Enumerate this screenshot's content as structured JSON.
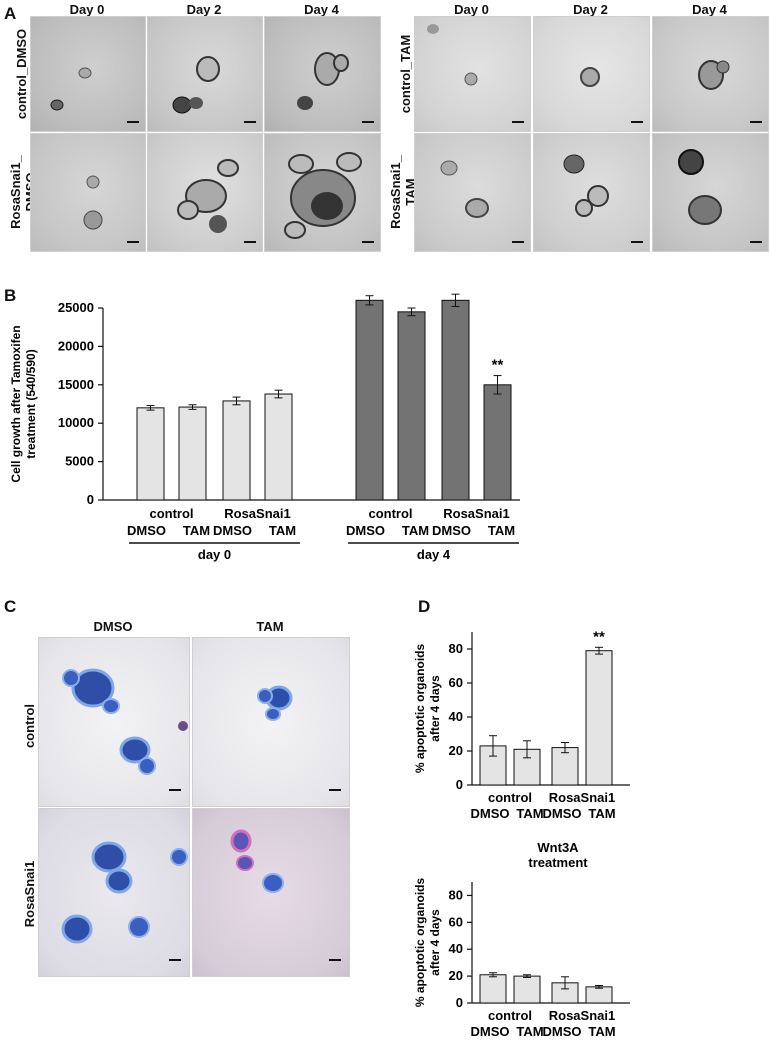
{
  "panels": {
    "A": {
      "label": "A",
      "left_columns": [
        "Day 0",
        "Day 2",
        "Day 4"
      ],
      "right_columns": [
        "Day 0",
        "Day 2",
        "Day 4"
      ],
      "left_rows": [
        "control_DMSO",
        "RosaSnai1_\nDMSO"
      ],
      "right_rows": [
        "control_TAM",
        "RosaSnai1_\nTAM"
      ]
    },
    "B": {
      "label": "B"
    },
    "C": {
      "label": "C",
      "columns": [
        "DMSO",
        "TAM"
      ],
      "rows": [
        "control",
        "RosaSnai1"
      ]
    },
    "D": {
      "label": "D"
    }
  },
  "chart_data": [
    {
      "type": "bar",
      "id": "B",
      "ylabel": "Cell growth after Tamoxifen\ntreatment (540/590)",
      "ylim": [
        0,
        25000
      ],
      "yticks": [
        0,
        5000,
        10000,
        15000,
        20000,
        25000
      ],
      "groups": [
        {
          "name": "day 0",
          "color": "#e4e4e4",
          "subgroups": [
            {
              "name": "control",
              "categories": [
                "DMSO",
                "TAM"
              ]
            },
            {
              "name": "RosaSnai1",
              "categories": [
                "DMSO",
                "TAM"
              ]
            }
          ],
          "values": [
            12000,
            12100,
            12900,
            13800
          ],
          "errors": [
            300,
            300,
            500,
            500
          ]
        },
        {
          "name": "day 4",
          "color": "#737373",
          "subgroups": [
            {
              "name": "control",
              "categories": [
                "DMSO",
                "TAM"
              ]
            },
            {
              "name": "RosaSnai1",
              "categories": [
                "DMSO",
                "TAM"
              ]
            }
          ],
          "values": [
            26000,
            24500,
            26000,
            15000
          ],
          "errors": [
            600,
            500,
            800,
            1200
          ]
        }
      ],
      "annotations": [
        {
          "bar": 7,
          "text": "**"
        }
      ]
    },
    {
      "type": "bar",
      "id": "D-top",
      "title": "",
      "ylabel": "% apoptotic organoids\nafter 4 days",
      "ylim": [
        0,
        90
      ],
      "yticks": [
        0,
        20,
        40,
        60,
        80
      ],
      "color": "#e4e4e4",
      "subgroups": [
        {
          "name": "control",
          "categories": [
            "DMSO",
            "TAM"
          ]
        },
        {
          "name": "RosaSnai1",
          "categories": [
            "DMSO",
            "TAM"
          ]
        }
      ],
      "values": [
        23,
        21,
        22,
        79
      ],
      "errors": [
        6,
        5,
        3,
        2
      ],
      "annotations": [
        {
          "bar": 3,
          "text": "**"
        }
      ]
    },
    {
      "type": "bar",
      "id": "D-bottom",
      "title": "Wnt3A\ntreatment",
      "ylabel": "% apoptotic organoids\nafter 4 days",
      "ylim": [
        0,
        90
      ],
      "yticks": [
        0,
        20,
        40,
        60,
        80
      ],
      "color": "#e4e4e4",
      "subgroups": [
        {
          "name": "control",
          "categories": [
            "DMSO",
            "TAM"
          ]
        },
        {
          "name": "RosaSnai1",
          "categories": [
            "DMSO",
            "TAM"
          ]
        }
      ],
      "values": [
        21,
        20,
        15,
        12
      ],
      "errors": [
        1.5,
        1,
        4.5,
        1
      ],
      "annotations": []
    }
  ]
}
